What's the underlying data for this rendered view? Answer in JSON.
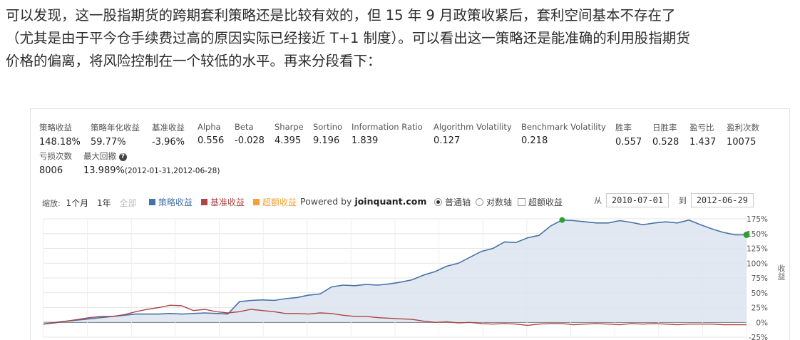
{
  "paragraph": {
    "line1": "可以发现，这一股指期货的跨期套利策略还是比较有效的，但 15 年 9 月政策收紧后，套利空间基本不存在了",
    "line2": "（尤其是由于平今仓手续费过高的原因实际已经接近 T+1 制度）。可以看出这一策略还是能准确的利用股指期货",
    "line3": "价格的偏离，将风险控制在一个较低的水平。再来分段看下："
  },
  "stats": {
    "strategy_return": {
      "label": "策略收益",
      "value": "148.18%"
    },
    "annual_return": {
      "label": "策略年化收益",
      "value": "59.77%"
    },
    "benchmark_return": {
      "label": "基准收益",
      "value": "-3.96%"
    },
    "alpha": {
      "label": "Alpha",
      "value": "0.556"
    },
    "beta": {
      "label": "Beta",
      "value": "-0.028"
    },
    "sharpe": {
      "label": "Sharpe",
      "value": "4.395"
    },
    "sortino": {
      "label": "Sortino",
      "value": "9.196"
    },
    "information_ratio": {
      "label": "Information Ratio",
      "value": "1.839"
    },
    "algorithm_volatility": {
      "label": "Algorithm Volatility",
      "value": "0.127"
    },
    "benchmark_volatility": {
      "label": "Benchmark Volatility",
      "value": "0.218"
    },
    "win_rate": {
      "label": "胜率",
      "value": "0.557"
    },
    "daily_win_rate": {
      "label": "日胜率",
      "value": "0.528"
    },
    "profit_loss_ratio": {
      "label": "盈亏比",
      "value": "1.437"
    },
    "win_count": {
      "label": "盈利次数",
      "value": "10075"
    },
    "loss_count": {
      "label": "亏损次数",
      "value": "8006"
    },
    "max_drawdown": {
      "label": "最大回撤",
      "value": "13.989%",
      "range": "(2012-01-31,2012-06-28)"
    }
  },
  "toolbar": {
    "zoom_label": "缩放:",
    "zoom_1m": "1个月",
    "zoom_1y": "1年",
    "zoom_all": "全部",
    "legend_strategy": "策略收益",
    "legend_benchmark": "基准收益",
    "legend_excess": "超额收益",
    "powered_prefix": "Powered by ",
    "powered_brand": "joinquant.com",
    "axis_normal": "普通轴",
    "axis_log": "对数轴",
    "excess_toggle": "超额收益",
    "from_label": "从",
    "from_date": "2010-07-01",
    "to_label": "到",
    "to_date": "2012-06-29"
  },
  "colors": {
    "strategy": "#4572a7",
    "benchmark": "#aa4643",
    "excess": "#f7a035",
    "marker": "#2ca02c"
  },
  "chart_data": {
    "type": "area",
    "x_range": [
      "2010-07-01",
      "2012-06-29"
    ],
    "ylabel": "收益",
    "y_ticks": [
      "175%",
      "150%",
      "125%",
      "100%",
      "75%",
      "50%",
      "25%",
      "0%",
      "-25%"
    ],
    "ylim": [
      -25,
      175
    ],
    "grid": true,
    "series": [
      {
        "name": "策略收益",
        "values": [
          -3,
          0,
          2,
          4,
          6,
          8,
          10,
          12,
          14,
          14,
          14,
          15,
          14,
          15,
          16,
          15,
          14,
          35,
          37,
          38,
          37,
          40,
          42,
          46,
          48,
          60,
          63,
          62,
          64,
          63,
          65,
          68,
          72,
          80,
          86,
          95,
          100,
          110,
          120,
          125,
          136,
          135,
          143,
          147,
          163,
          173,
          172,
          170,
          168,
          168,
          172,
          169,
          165,
          168,
          170,
          168,
          173,
          165,
          158,
          152,
          148,
          148
        ]
      },
      {
        "name": "基准收益",
        "values": [
          -3,
          -1,
          2,
          5,
          8,
          10,
          10,
          13,
          18,
          22,
          25,
          29,
          28,
          20,
          22,
          18,
          16,
          18,
          22,
          20,
          18,
          15,
          15,
          14,
          16,
          15,
          12,
          10,
          10,
          8,
          7,
          6,
          5,
          2,
          0,
          1,
          -1,
          0,
          -2,
          -3,
          -2,
          -3,
          -5,
          -3,
          -2,
          -2,
          -4,
          -3,
          -2,
          -3,
          -4,
          -2,
          -3,
          -2,
          -3,
          -4,
          -3,
          -3,
          -3,
          -4,
          -4,
          -4
        ]
      }
    ]
  }
}
